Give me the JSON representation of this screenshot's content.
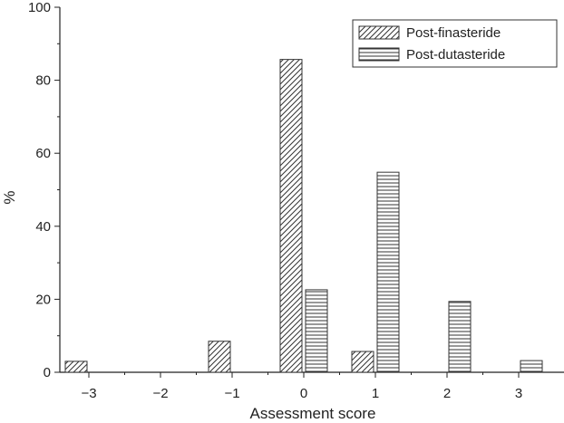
{
  "chart_data": {
    "type": "bar",
    "title": "",
    "xlabel": "Assessment score",
    "ylabel": "%",
    "categories": [
      "−3",
      "−2",
      "−1",
      "0",
      "1",
      "2",
      "3"
    ],
    "ylim": [
      0,
      100
    ],
    "yticks": [
      "0",
      "20",
      "40",
      "60",
      "80",
      "100"
    ],
    "legend_position": "top-right",
    "grid": false,
    "series": [
      {
        "name": "Post-finasteride",
        "pattern": "diagonal-hatch",
        "values": [
          3,
          0,
          8.5,
          85.7,
          5.7,
          0,
          0
        ]
      },
      {
        "name": "Post-dutasteride",
        "pattern": "horizontal-hatch",
        "values": [
          0,
          0,
          0,
          22.6,
          54.8,
          19.4,
          3.2
        ]
      }
    ]
  }
}
